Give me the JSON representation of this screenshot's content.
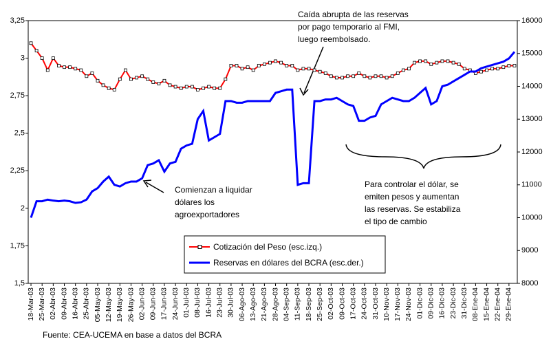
{
  "chart_data": {
    "type": "line",
    "categories": [
      "18-Mar-03",
      null,
      "25-Mar-03",
      null,
      "02-Abr-03",
      null,
      "09-Abr-03",
      null,
      "16-Abr-03",
      null,
      "25-Abr-03",
      null,
      "05-May-03",
      null,
      "12-May-03",
      null,
      "19-May-03",
      null,
      "26-May-03",
      null,
      "02-Jun-03",
      null,
      "09-Jun-03",
      null,
      "17-Jun-03",
      null,
      "24-Jun-03",
      null,
      "01-Jul-03",
      null,
      "08-Jul-03",
      null,
      "16-Jul-03",
      null,
      "23-Jul-03",
      null,
      "30-Jul-03",
      null,
      "06-Ago-03",
      null,
      "13-Ago-03",
      null,
      "21-Ago-03",
      null,
      "28-Ago-03",
      null,
      "04-Sep-03",
      null,
      "11-Sep-03",
      null,
      "18-Sep-03",
      null,
      "25-Sep-03",
      null,
      "02-Oct-03",
      null,
      "09-Oct-03",
      null,
      "17-Oct-03",
      null,
      "24-Oct-03",
      null,
      "31-Oct-03",
      null,
      "10-Nov-03",
      null,
      "17-Nov-03",
      null,
      "24-Nov-03",
      null,
      "01-Dic-03",
      null,
      "09-Dic-03",
      null,
      "16-Dic-03",
      null,
      "23-Dic-03",
      null,
      "31-Dic-03",
      null,
      "08-Ene-04",
      null,
      "15-Ene-04",
      null,
      "22-Ene-04",
      null,
      "29-Ene-04",
      null
    ],
    "series": [
      {
        "name": "Cotización del Peso (esc.izq.)",
        "color": "#ff0000",
        "axis": "y",
        "values": [
          3.1,
          3.05,
          3.0,
          2.92,
          3.0,
          2.95,
          2.94,
          2.94,
          2.93,
          2.92,
          2.88,
          2.9,
          2.85,
          2.82,
          2.8,
          2.79,
          2.86,
          2.92,
          2.86,
          2.87,
          2.88,
          2.86,
          2.84,
          2.83,
          2.85,
          2.82,
          2.81,
          2.8,
          2.81,
          2.81,
          2.79,
          2.8,
          2.81,
          2.8,
          2.8,
          2.86,
          2.95,
          2.95,
          2.93,
          2.94,
          2.92,
          2.95,
          2.96,
          2.97,
          2.98,
          2.97,
          2.95,
          2.95,
          2.92,
          2.93,
          2.93,
          2.92,
          2.91,
          2.9,
          2.88,
          2.87,
          2.87,
          2.88,
          2.88,
          2.9,
          2.88,
          2.87,
          2.88,
          2.88,
          2.87,
          2.88,
          2.9,
          2.92,
          2.93,
          2.97,
          2.98,
          2.98,
          2.96,
          2.97,
          2.98,
          2.98,
          2.97,
          2.96,
          2.93,
          2.92,
          2.9,
          2.91,
          2.92,
          2.93,
          2.93,
          2.94,
          2.95,
          2.95
        ]
      },
      {
        "name": "Reservas en dólares del BCRA (esc.der.)",
        "color": "#0000ff",
        "axis": "y2",
        "values": [
          10000,
          10500,
          10500,
          10550,
          10520,
          10500,
          10520,
          10500,
          10450,
          10470,
          10550,
          10800,
          10900,
          11100,
          11250,
          11000,
          10950,
          11050,
          11100,
          11100,
          11200,
          11600,
          11650,
          11750,
          11400,
          11650,
          11700,
          12100,
          12200,
          12250,
          13000,
          13250,
          12350,
          12450,
          12550,
          13550,
          13550,
          13500,
          13500,
          13550,
          13550,
          13550,
          13550,
          13550,
          13800,
          13850,
          13900,
          13900,
          11000,
          11050,
          11050,
          13550,
          13550,
          13600,
          13600,
          13650,
          13550,
          13450,
          13400,
          12950,
          12950,
          13050,
          13100,
          13450,
          13550,
          13650,
          13600,
          13550,
          13550,
          13650,
          13800,
          13950,
          13450,
          13550,
          14000,
          14050,
          14150,
          14250,
          14350,
          14450,
          14450,
          14550,
          14600,
          14650,
          14700,
          14750,
          14850,
          15050
        ]
      }
    ],
    "ylim": [
      1.5,
      3.25
    ],
    "yticks": [
      {
        "value": 1.5,
        "label": "1,5"
      },
      {
        "value": 1.75,
        "label": "1,75"
      },
      2,
      {
        "value": 2.25,
        "label": "2,25"
      },
      {
        "value": 2.5,
        "label": "2,5"
      },
      {
        "value": 2.75,
        "label": "2,75"
      },
      3,
      {
        "value": 3.25,
        "label": "3,25"
      }
    ],
    "y2lim": [
      8000,
      16000
    ],
    "y2ticks": [
      8000,
      9000,
      10000,
      11000,
      12000,
      13000,
      14000,
      15000,
      16000
    ],
    "annotations": [
      [
        "Caída abrupta de las reservas",
        "por pago temporario al FMI,",
        "luego reembolsado."
      ],
      [
        "Comienzan a liquidar",
        "dólares los",
        "agroexportadores"
      ],
      [
        "Para controlar el dólar, se",
        "emiten pesos y aumentan",
        "las reservas.  Se estabiliza",
        "el tipo de cambio"
      ]
    ],
    "source": "Fuente: CEA-UCEMA en base a datos del BCRA"
  }
}
